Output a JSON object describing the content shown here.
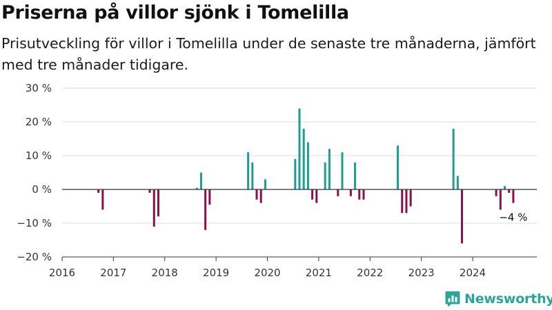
{
  "header": {
    "title": "Priserna på villor sjönk i Tomelilla",
    "subtitle": "Prisutveckling för villor i Tomelilla under de senaste tre månaderna, jämfört med tre månader tidigare."
  },
  "brand": {
    "name": "Newsworthy",
    "icon": "newsworthy-logo-icon",
    "color": "#2aa59a"
  },
  "colors": {
    "positive": "#1f9c91",
    "negative": "#8b0f4c",
    "grid": "#dddddd",
    "zero": "#333333"
  },
  "chart_data": {
    "type": "bar",
    "title": "Priserna på villor sjönk i Tomelilla",
    "subtitle": "Prisutveckling för villor i Tomelilla under de senaste tre månaderna, jämfört med tre månader tidigare.",
    "xlabel": "",
    "ylabel": "",
    "unit": "%",
    "ylim": [
      -20,
      30
    ],
    "yticks": [
      -20,
      -10,
      0,
      10,
      20,
      30
    ],
    "ytick_labels": [
      "−20 %",
      "−10 %",
      "0 %",
      "10 %",
      "20 %",
      "30 %"
    ],
    "xlim": [
      2016,
      2025.25
    ],
    "xticks": [
      2016,
      2017,
      2018,
      2019,
      2020,
      2021,
      2022,
      2023,
      2024
    ],
    "xtick_labels": [
      "2016",
      "2017",
      "2018",
      "2019",
      "2020",
      "2021",
      "2022",
      "2023",
      "2024"
    ],
    "grid": true,
    "bar_interval": "month",
    "x": [
      "2016-09",
      "2016-10",
      "2017-09",
      "2017-10",
      "2017-11",
      "2018-08",
      "2018-09",
      "2018-10",
      "2018-11",
      "2019-08",
      "2019-09",
      "2019-10",
      "2019-11",
      "2019-12",
      "2020-07",
      "2020-08",
      "2020-09",
      "2020-10",
      "2020-11",
      "2020-12",
      "2021-02",
      "2021-03",
      "2021-05",
      "2021-06",
      "2021-08",
      "2021-09",
      "2021-10",
      "2021-11",
      "2022-07",
      "2022-08",
      "2022-09",
      "2022-10",
      "2023-08",
      "2023-09",
      "2023-10",
      "2024-06",
      "2024-07",
      "2024-08",
      "2024-09",
      "2024-10"
    ],
    "values": [
      -1,
      -6,
      -1,
      -11,
      -8,
      0.5,
      5,
      -12,
      -4.5,
      11,
      8,
      -3,
      -4,
      3,
      9,
      24,
      18,
      14,
      -3,
      -4,
      8,
      12,
      -2,
      11,
      -2,
      8,
      -3,
      -3,
      13,
      -7,
      -7,
      -5,
      18,
      4,
      -16,
      -2,
      -6,
      1,
      -1,
      -4
    ],
    "annotation": {
      "x": "2024-10",
      "value": -4,
      "label": "−4 %"
    }
  }
}
